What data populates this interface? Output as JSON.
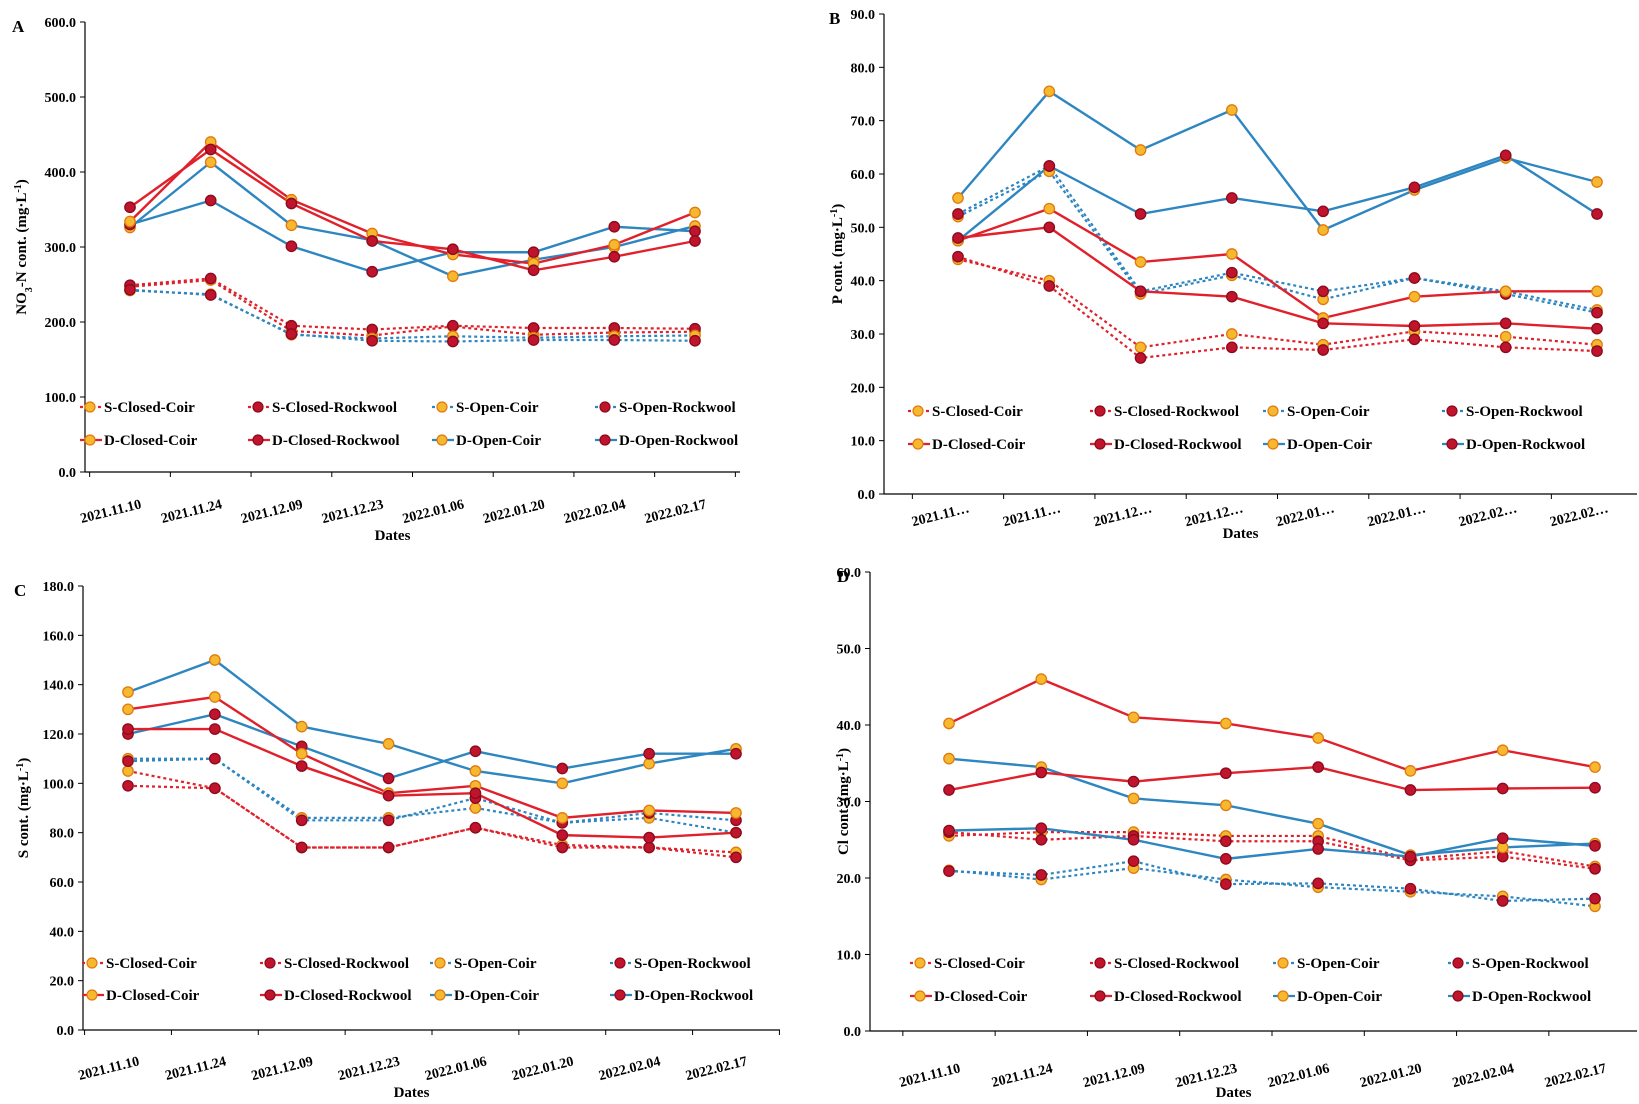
{
  "colors": {
    "coir_marker": "#F5B82E",
    "rockwool_marker": "#C0142C",
    "closed_line": "#E0202A",
    "open_line": "#2E86C1",
    "error_bar": "#555555"
  },
  "series_style": [
    {
      "name": "S-Closed-Coir",
      "line": "closed",
      "dash": true,
      "marker": "coir"
    },
    {
      "name": "S-Closed-Rockwool",
      "line": "closed",
      "dash": true,
      "marker": "rockwool"
    },
    {
      "name": "S-Open-Coir",
      "line": "open",
      "dash": true,
      "marker": "coir"
    },
    {
      "name": "S-Open-Rockwool",
      "line": "open",
      "dash": true,
      "marker": "rockwool"
    },
    {
      "name": "D-Closed-Coir",
      "line": "closed",
      "dash": false,
      "marker": "coir"
    },
    {
      "name": "D-Closed-Rockwool",
      "line": "closed",
      "dash": false,
      "marker": "rockwool"
    },
    {
      "name": "D-Open-Coir",
      "line": "open",
      "dash": false,
      "marker": "coir"
    },
    {
      "name": "D-Open-Rockwool",
      "line": "open",
      "dash": false,
      "marker": "rockwool"
    }
  ],
  "chart_data": [
    {
      "panel": "A",
      "type": "line",
      "xlabel": "Dates",
      "ylabel_main": "NO",
      "ylabel_sub1": "3",
      "ylabel_mid": "-N cont. (mg·L",
      "ylabel_sup": "-1",
      "ylabel_end": ")",
      "ylim": [
        0,
        600
      ],
      "yticks": [
        "0.0",
        "100.0",
        "200.0",
        "300.0",
        "400.0",
        "500.0",
        "600.0"
      ],
      "categories": [
        "2021.11.10",
        "2021.11.24",
        "2021.12.09",
        "2021.12.23",
        "2022.01.06",
        "2022.01.20",
        "2022.02.04",
        "2022.02.17"
      ],
      "legend": [
        "S-Closed-Coir",
        "S-Closed-Rockwool",
        "S-Open-Coir",
        "S-Open-Rockwool",
        "D-Closed-Coir",
        "D-Closed-Rockwool",
        "D-Open-Coir",
        "D-Open-Rockwool"
      ],
      "series": [
        {
          "name": "S-Closed-Coir",
          "values": [
            247,
            256,
            188,
            182,
            194,
            183,
            186,
            187
          ]
        },
        {
          "name": "S-Closed-Rockwool",
          "values": [
            249,
            258,
            195,
            190,
            195,
            192,
            192,
            191
          ]
        },
        {
          "name": "S-Open-Coir",
          "values": [
            242,
            237,
            183,
            178,
            181,
            179,
            181,
            182
          ]
        },
        {
          "name": "S-Open-Rockwool",
          "values": [
            243,
            236,
            184,
            175,
            174,
            176,
            176,
            175
          ]
        },
        {
          "name": "D-Closed-Coir",
          "values": [
            334,
            440,
            363,
            318,
            290,
            278,
            303,
            346
          ]
        },
        {
          "name": "D-Closed-Rockwool",
          "values": [
            353,
            430,
            358,
            308,
            297,
            269,
            287,
            308
          ]
        },
        {
          "name": "D-Open-Coir",
          "values": [
            326,
            413,
            329,
            309,
            261,
            283,
            300,
            328
          ]
        },
        {
          "name": "D-Open-Rockwool",
          "values": [
            330,
            362,
            301,
            267,
            293,
            293,
            327,
            321
          ]
        }
      ]
    },
    {
      "panel": "B",
      "type": "line",
      "xlabel": "Dates",
      "ylabel_main": "P cont. (mg·L",
      "ylabel_sup": "-1",
      "ylabel_end": ")",
      "ylim": [
        0,
        90
      ],
      "yticks": [
        "0.0",
        "10.0",
        "20.0",
        "30.0",
        "40.0",
        "50.0",
        "60.0",
        "70.0",
        "80.0",
        "90.0"
      ],
      "categories": [
        "2021.11…",
        "2021.11…",
        "2021.12…",
        "2021.12…",
        "2022.01…",
        "2022.01…",
        "2022.02…",
        "2022.02…"
      ],
      "legend": [
        "S-Closed-Coir",
        "S-Closed-Rockwool",
        "S-Open-Coir",
        "S-Open-Rockwool",
        "D-Closed-Coir",
        "D-Closed-Rockwool",
        "D-Open-Coir",
        "D-Open-Rockwool"
      ],
      "series": [
        {
          "name": "S-Closed-Coir",
          "values": [
            44,
            40,
            27.5,
            30,
            28,
            30.5,
            29.5,
            28
          ]
        },
        {
          "name": "S-Closed-Rockwool",
          "values": [
            44.5,
            39,
            25.5,
            27.5,
            27,
            29,
            27.5,
            26.8
          ]
        },
        {
          "name": "S-Open-Coir",
          "values": [
            52,
            60.5,
            37.5,
            41,
            36.5,
            40.5,
            38,
            34.5
          ]
        },
        {
          "name": "S-Open-Rockwool",
          "values": [
            52.5,
            61.5,
            38,
            41.5,
            38,
            40.5,
            37.5,
            34
          ]
        },
        {
          "name": "D-Closed-Coir",
          "values": [
            47.5,
            53.5,
            43.5,
            45,
            33,
            37,
            38,
            38
          ]
        },
        {
          "name": "D-Closed-Rockwool",
          "values": [
            48,
            50,
            38,
            37,
            32,
            31.5,
            32,
            31
          ]
        },
        {
          "name": "D-Open-Coir",
          "values": [
            55.5,
            75.5,
            64.5,
            72,
            49.5,
            57,
            63,
            58.5
          ]
        },
        {
          "name": "D-Open-Rockwool",
          "values": [
            47.5,
            61.5,
            52.5,
            55.5,
            53,
            57.5,
            63.5,
            52.5
          ]
        }
      ]
    },
    {
      "panel": "C",
      "type": "line",
      "xlabel": "Dates",
      "ylabel_main": "S cont. (mg·L",
      "ylabel_sup": "-1",
      "ylabel_end": ")",
      "ylim": [
        0,
        180
      ],
      "yticks": [
        "0.0",
        "20.0",
        "40.0",
        "60.0",
        "80.0",
        "100.0",
        "120.0",
        "140.0",
        "160.0",
        "180.0"
      ],
      "categories": [
        "2021.11.10",
        "2021.11.24",
        "2021.12.09",
        "2021.12.23",
        "2022.01.06",
        "2022.01.20",
        "2022.02.04",
        "2022.02.17"
      ],
      "legend": [
        "S-Closed-Coir",
        "S-Closed-Rockwool",
        "S-Open-Coir",
        "S-Open-Rockwool",
        "D-Closed-Coir",
        "D-Closed-Rockwool",
        "D-Open-Coir",
        "D-Open-Rockwool"
      ],
      "series": [
        {
          "name": "S-Closed-Coir",
          "values": [
            105,
            98,
            74,
            74,
            82,
            75,
            74,
            72
          ]
        },
        {
          "name": "S-Closed-Rockwool",
          "values": [
            99,
            98,
            74,
            74,
            82,
            74,
            74,
            70
          ]
        },
        {
          "name": "S-Open-Coir",
          "values": [
            110,
            110,
            86,
            86,
            90,
            84,
            86,
            80
          ]
        },
        {
          "name": "S-Open-Rockwool",
          "values": [
            109,
            110,
            85,
            85,
            94,
            84,
            88,
            85
          ]
        },
        {
          "name": "D-Closed-Coir",
          "values": [
            130,
            135,
            112,
            96,
            99,
            86,
            89,
            88
          ]
        },
        {
          "name": "D-Closed-Rockwool",
          "values": [
            122,
            122,
            107,
            95,
            96,
            79,
            78,
            80
          ]
        },
        {
          "name": "D-Open-Coir",
          "values": [
            137,
            150,
            123,
            116,
            105,
            100,
            108,
            114
          ]
        },
        {
          "name": "D-Open-Rockwool",
          "values": [
            120,
            128,
            115,
            102,
            113,
            106,
            112,
            112
          ]
        }
      ]
    },
    {
      "panel": "D",
      "type": "line",
      "xlabel": "Dates",
      "ylabel_main": "Cl cont. (mg·L",
      "ylabel_sup": "-1",
      "ylabel_end": ")",
      "ylim": [
        0,
        60
      ],
      "yticks": [
        "0.0",
        "10.0",
        "20.0",
        "30.0",
        "40.0",
        "50.0",
        "60.0"
      ],
      "categories": [
        "2021.11.10",
        "2021.11.24",
        "2021.12.09",
        "2021.12.23",
        "2022.01.06",
        "2022.01.20",
        "2022.02.04",
        "2022.02.17"
      ],
      "legend": [
        "S-Closed-Coir",
        "S-Closed-Rockwool",
        "S-Open-Coir",
        "S-Open-Rockwool",
        "D-Closed-Coir",
        "D-Closed-Rockwool",
        "D-Open-Coir",
        "D-Open-Rockwool"
      ],
      "series": [
        {
          "name": "S-Closed-Coir",
          "values": [
            25.5,
            26,
            26,
            25.5,
            25.5,
            22.5,
            23.5,
            21.5
          ]
        },
        {
          "name": "S-Closed-Rockwool",
          "values": [
            26,
            25,
            25.5,
            24.8,
            24.8,
            22.3,
            22.8,
            21.2
          ]
        },
        {
          "name": "S-Open-Coir",
          "values": [
            21,
            19.8,
            21.3,
            19.8,
            18.8,
            18.2,
            17.6,
            16.3
          ]
        },
        {
          "name": "S-Open-Rockwool",
          "values": [
            20.9,
            20.4,
            22.2,
            19.2,
            19.3,
            18.6,
            17.0,
            17.3
          ]
        },
        {
          "name": "D-Closed-Coir",
          "values": [
            40.2,
            46,
            41,
            40.2,
            38.3,
            34,
            36.7,
            34.5
          ]
        },
        {
          "name": "D-Closed-Rockwool",
          "values": [
            31.5,
            33.8,
            32.6,
            33.7,
            34.5,
            31.5,
            31.7,
            31.8
          ]
        },
        {
          "name": "D-Open-Coir",
          "values": [
            35.6,
            34.5,
            30.4,
            29.5,
            27.1,
            23,
            24,
            24.5
          ]
        },
        {
          "name": "D-Open-Rockwool",
          "values": [
            26.2,
            26.5,
            25,
            22.5,
            23.8,
            22.8,
            25.2,
            24.2
          ]
        }
      ]
    }
  ]
}
